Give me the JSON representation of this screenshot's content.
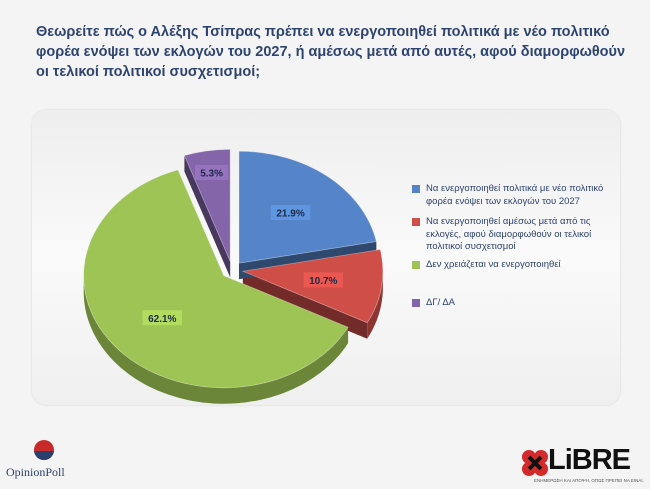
{
  "title_lines": [
    "Θεωρείτε πώς ο Αλέξης Τσίπρας πρέπει να ενεργοποιηθεί πολιτικά με νέο πολιτικό",
    "φορέα ενόψει των εκλογών του 2027, ή αμέσως μετά από αυτές, αφού διαμορφωθούν",
    "οι τελικοί πολιτικοί συσχετισμοί;"
  ],
  "chart_data": {
    "type": "pie",
    "title": "Θεωρείτε πώς ο Αλέξης Τσίπρας πρέπει να ενεργοποιηθεί πολιτικά με νέο πολιτικό φορέα ενόψει των εκλογών του 2027, ή αμέσως μετά από αυτές, αφού διαμορφωθούν οι τελικοί πολιτικοί συσχετισμοί;",
    "style": "3d-exploded",
    "legend_position": "right",
    "slices": [
      {
        "label": "Να ενεργοποιηθεί πολιτικά με νέο πολιτικό φορέα ενόψει των εκλογών του 2027",
        "value": 21.9,
        "display": "21.9%",
        "color": "#5585c8"
      },
      {
        "label": "Να ενεργοποιηθεί αμέσως μετά από τις εκλογές, αφού διαμορφωθούν οι τελικοί πολιτικοί συσχετισμοί",
        "value": 10.7,
        "display": "10.7%",
        "color": "#cf4e48"
      },
      {
        "label": "Δεν χρειάζεται να ενεργοποιηθεί",
        "value": 62.1,
        "display": "62.1%",
        "color": "#9dc454"
      },
      {
        "label": "ΔΓ/ ΔΑ",
        "value": 5.3,
        "display": "5.3%",
        "color": "#8565aa"
      }
    ]
  },
  "logos": {
    "left_text": "OpinionPoll",
    "right_text": "LiBRE",
    "right_tagline": "ΕΝΗΜΕΡΩΣΗ ΚΑΙ ΑΠΟΨΗ, ΟΠΩΣ ΠΡΕΠΕΙ ΝΑ ΕΙΝΑΙ."
  }
}
